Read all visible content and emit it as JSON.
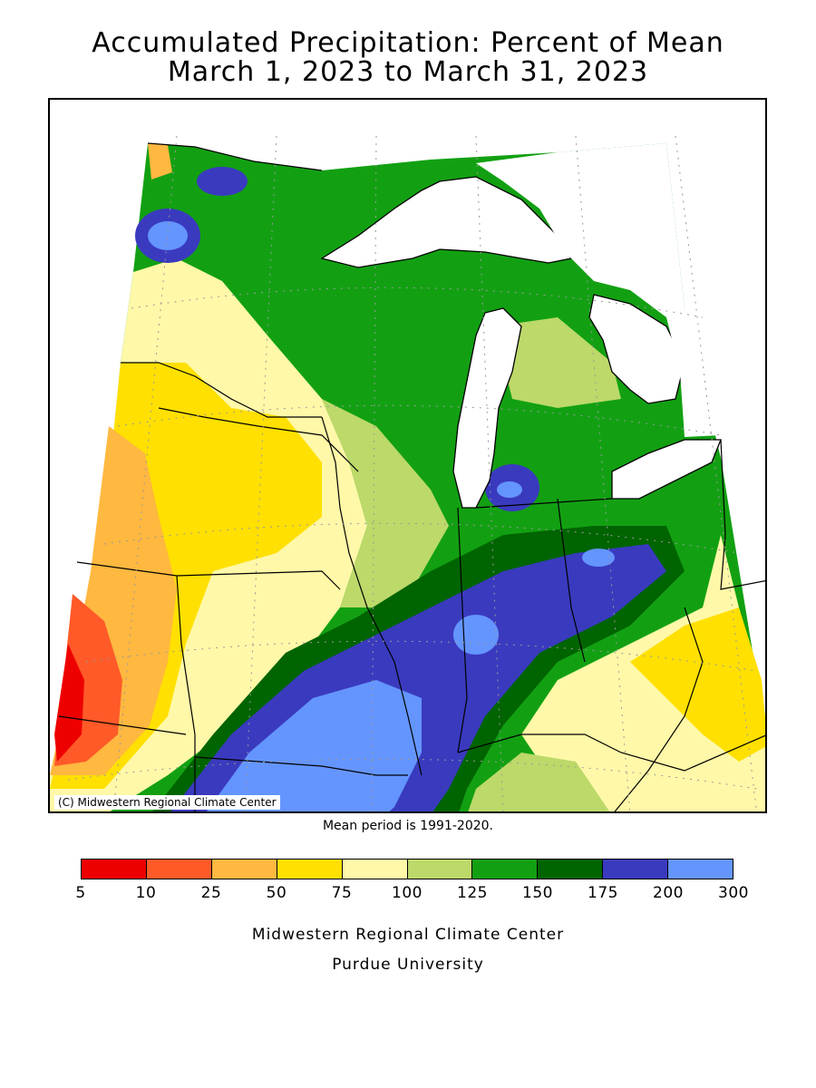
{
  "title": {
    "line1": "Accumulated Precipitation: Percent of Mean",
    "line2": "March 1, 2023 to March 31, 2023"
  },
  "map": {
    "region": "Upper Midwest / Great Lakes",
    "copyright": "(C) Midwestern Regional Climate Center"
  },
  "note": "Mean period is 1991-2020.",
  "legend": {
    "colors": [
      "#ee0000",
      "#ff5a28",
      "#ffb840",
      "#ffe000",
      "#fff8a8",
      "#bcd96a",
      "#12a012",
      "#006400",
      "#3a3abf",
      "#6495ff"
    ],
    "ticks": [
      "5",
      "10",
      "25",
      "50",
      "75",
      "100",
      "125",
      "150",
      "175",
      "200",
      "300"
    ]
  },
  "footer": {
    "line1": "Midwestern Regional Climate Center",
    "line2": "Purdue University"
  }
}
